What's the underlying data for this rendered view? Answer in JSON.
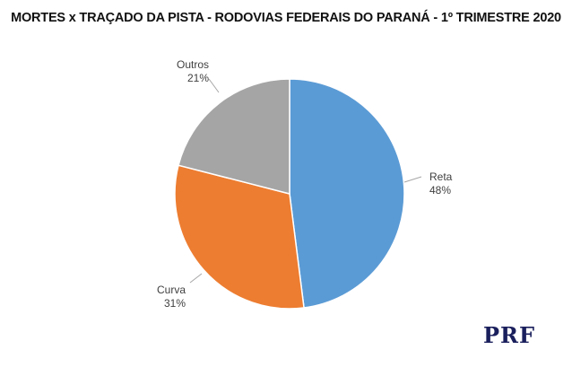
{
  "chart_data": {
    "type": "pie",
    "title": "MORTES x TRAÇADO DA PISTA - RODOVIAS FEDERAIS DO PARANÁ - 1º TRIMESTRE 2020",
    "slices": [
      {
        "label": "Reta",
        "value": 48,
        "value_label": "48%",
        "color": "#5b9bd5"
      },
      {
        "label": "Curva",
        "value": 31,
        "value_label": "31%",
        "color": "#ed7d31"
      },
      {
        "label": "Outros",
        "value": 21,
        "value_label": "21%",
        "color": "#a5a5a5"
      }
    ],
    "start": "12 o'clock",
    "direction": "clockwise",
    "legend": "none",
    "labels": "outside"
  },
  "logo": {
    "text": "PRF",
    "color": "#1a1f5c"
  }
}
